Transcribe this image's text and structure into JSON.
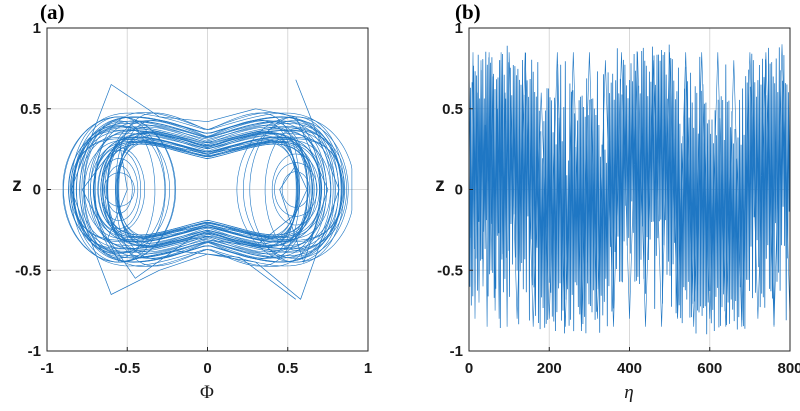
{
  "chart_data": [
    {
      "panel": "(a)",
      "type": "line",
      "title": "",
      "xlabel": "Φ",
      "ylabel": "z",
      "xlim": [
        -1,
        1
      ],
      "ylim": [
        -1,
        1
      ],
      "xticks": [
        "-1",
        "-0.5",
        "0",
        "0.5",
        "1"
      ],
      "yticks": [
        "-1",
        "-0.5",
        "0",
        "0.5",
        "1"
      ],
      "grid": true,
      "series": [
        {
          "color": "#1f77c4",
          "description_type": "phase-portrait",
          "x": [
            0.55,
            0.82,
            0.58,
            0.3,
            0.0,
            -0.3,
            -0.6,
            -0.85,
            -0.6,
            -0.3,
            0.0,
            0.3,
            0.55,
            0.75,
            0.6,
            0.45,
            0.55,
            0.62,
            0.55,
            0.3,
            -0.1,
            -0.45,
            -0.62,
            -0.5,
            -0.55,
            -0.78,
            -0.55,
            -0.2,
            0.2,
            0.55
          ],
          "y": [
            0.68,
            0.0,
            -0.68,
            -0.45,
            -0.4,
            -0.5,
            -0.65,
            0.0,
            0.65,
            0.45,
            0.42,
            0.5,
            0.45,
            0.0,
            -0.45,
            0.0,
            0.15,
            0.0,
            -0.15,
            -0.35,
            -0.3,
            -0.55,
            -0.3,
            0.0,
            0.3,
            0.0,
            -0.45,
            -0.38,
            -0.42,
            -0.68
          ]
        }
      ]
    },
    {
      "panel": "(b)",
      "type": "line",
      "title": "",
      "xlabel": "η",
      "ylabel": "z",
      "xlim": [
        0,
        800
      ],
      "ylim": [
        -1,
        1
      ],
      "xticks": [
        "0",
        "200",
        "400",
        "600",
        "800"
      ],
      "yticks": [
        "-1",
        "-0.5",
        "0",
        "0.5",
        "1"
      ],
      "grid": true,
      "series": [
        {
          "color": "#1f77c4",
          "description_type": "time-series",
          "x": [
            0,
            5,
            10,
            15,
            20,
            25,
            30,
            35,
            40,
            45,
            50,
            55,
            60,
            65,
            70,
            75,
            80,
            85,
            90,
            95,
            100,
            120,
            140,
            160,
            180,
            200,
            220,
            240,
            260,
            280,
            300,
            320,
            340,
            360,
            380,
            400,
            420,
            440,
            460,
            480,
            500,
            520,
            540,
            560,
            580,
            600,
            620,
            640,
            660,
            680,
            700,
            720,
            740,
            760,
            780,
            800
          ],
          "y": [
            0.8,
            -0.3,
            0.85,
            -0.8,
            0.6,
            -0.7,
            0.8,
            -0.6,
            0.4,
            -0.85,
            0.85,
            -0.5,
            0.7,
            -0.75,
            0.5,
            -0.8,
            0.85,
            -0.4,
            0.6,
            -0.85,
            0.85,
            -0.8,
            0.85,
            -0.85,
            0.6,
            -0.8,
            0.85,
            -0.85,
            0.85,
            -0.85,
            0.85,
            -0.8,
            0.8,
            -0.85,
            0.85,
            -0.8,
            0.85,
            -0.85,
            0.8,
            -0.85,
            0.85,
            -0.8,
            0.85,
            -0.85,
            0.85,
            -0.8,
            0.85,
            -0.85,
            0.8,
            -0.85,
            0.85,
            -0.8,
            0.85,
            -0.85,
            0.9,
            -0.8
          ]
        }
      ]
    }
  ]
}
